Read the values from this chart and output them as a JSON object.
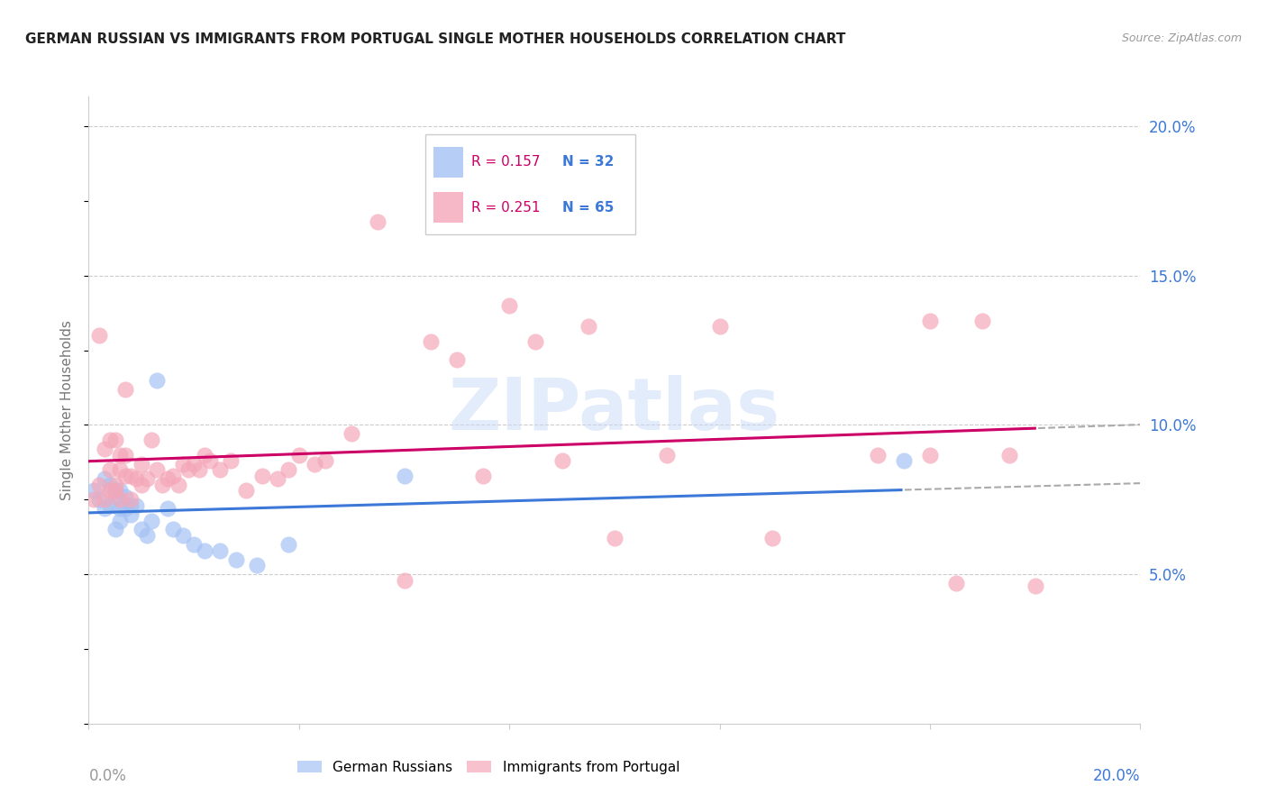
{
  "title": "GERMAN RUSSIAN VS IMMIGRANTS FROM PORTUGAL SINGLE MOTHER HOUSEHOLDS CORRELATION CHART",
  "source": "Source: ZipAtlas.com",
  "ylabel": "Single Mother Households",
  "xlim": [
    0.0,
    0.2
  ],
  "ylim": [
    0.0,
    0.21
  ],
  "x_ticks": [
    0.0,
    0.04,
    0.08,
    0.12,
    0.16,
    0.2
  ],
  "y_ticks": [
    0.05,
    0.1,
    0.15,
    0.2
  ],
  "color_blue": "#a4c2f4",
  "color_pink": "#f4a7b9",
  "color_blue_line": "#3c78d8",
  "color_pink_line": "#cc0066",
  "color_blue_text": "#3c78d8",
  "color_pink_text": "#cc0066",
  "color_gray_text": "#999999",
  "watermark_color": "#c9daf8",
  "blue_x": [
    0.001,
    0.002,
    0.003,
    0.003,
    0.004,
    0.004,
    0.005,
    0.005,
    0.005,
    0.006,
    0.006,
    0.006,
    0.007,
    0.007,
    0.008,
    0.008,
    0.009,
    0.01,
    0.011,
    0.012,
    0.013,
    0.015,
    0.016,
    0.018,
    0.02,
    0.022,
    0.025,
    0.028,
    0.032,
    0.038,
    0.06,
    0.155
  ],
  "blue_y": [
    0.078,
    0.075,
    0.082,
    0.072,
    0.08,
    0.073,
    0.076,
    0.078,
    0.065,
    0.078,
    0.072,
    0.068,
    0.076,
    0.072,
    0.073,
    0.07,
    0.073,
    0.065,
    0.063,
    0.068,
    0.115,
    0.072,
    0.065,
    0.063,
    0.06,
    0.058,
    0.058,
    0.055,
    0.053,
    0.06,
    0.083,
    0.088
  ],
  "pink_x": [
    0.001,
    0.002,
    0.002,
    0.003,
    0.003,
    0.004,
    0.004,
    0.004,
    0.005,
    0.005,
    0.005,
    0.006,
    0.006,
    0.006,
    0.007,
    0.007,
    0.007,
    0.008,
    0.008,
    0.009,
    0.01,
    0.01,
    0.011,
    0.012,
    0.013,
    0.014,
    0.015,
    0.016,
    0.017,
    0.018,
    0.019,
    0.02,
    0.021,
    0.022,
    0.023,
    0.025,
    0.027,
    0.03,
    0.033,
    0.036,
    0.038,
    0.04,
    0.043,
    0.045,
    0.05,
    0.055,
    0.06,
    0.065,
    0.07,
    0.075,
    0.08,
    0.085,
    0.09,
    0.095,
    0.1,
    0.11,
    0.12,
    0.13,
    0.15,
    0.16,
    0.165,
    0.17,
    0.175,
    0.18,
    0.16
  ],
  "pink_y": [
    0.075,
    0.08,
    0.13,
    0.075,
    0.092,
    0.078,
    0.085,
    0.095,
    0.08,
    0.078,
    0.095,
    0.075,
    0.085,
    0.09,
    0.083,
    0.09,
    0.112,
    0.083,
    0.075,
    0.082,
    0.08,
    0.087,
    0.082,
    0.095,
    0.085,
    0.08,
    0.082,
    0.083,
    0.08,
    0.087,
    0.085,
    0.087,
    0.085,
    0.09,
    0.088,
    0.085,
    0.088,
    0.078,
    0.083,
    0.082,
    0.085,
    0.09,
    0.087,
    0.088,
    0.097,
    0.168,
    0.048,
    0.128,
    0.122,
    0.083,
    0.14,
    0.128,
    0.088,
    0.133,
    0.062,
    0.09,
    0.133,
    0.062,
    0.09,
    0.135,
    0.047,
    0.135,
    0.09,
    0.046,
    0.09
  ]
}
